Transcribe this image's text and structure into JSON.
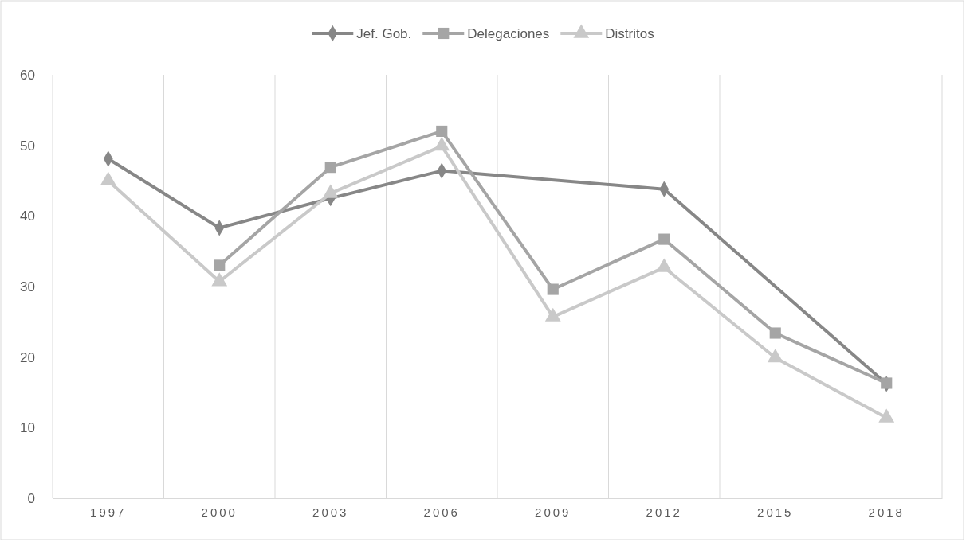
{
  "chart_data": {
    "type": "line",
    "categories": [
      "1997",
      "2000",
      "2003",
      "2006",
      "2009",
      "2012",
      "2015",
      "2018"
    ],
    "ylim": [
      0,
      60
    ],
    "yticks": [
      0,
      10,
      20,
      30,
      40,
      50,
      60
    ],
    "grid": "x",
    "legend": "top",
    "line_style": "solid",
    "series": [
      {
        "name": "Jef. Gob.",
        "color": "#878787",
        "marker": "diamond",
        "values": [
          48.1,
          38.3,
          42.5,
          46.4,
          null,
          43.8,
          null,
          16.2
        ]
      },
      {
        "name": "Delegaciones",
        "color": "#a5a5a5",
        "marker": "square",
        "values": [
          null,
          33.0,
          46.9,
          52.0,
          29.6,
          36.7,
          23.4,
          16.3
        ]
      },
      {
        "name": "Distritos",
        "color": "#c9c9c9",
        "marker": "triangle",
        "values": [
          45.0,
          30.7,
          43.2,
          49.9,
          25.7,
          32.7,
          19.9,
          11.4
        ]
      }
    ]
  }
}
